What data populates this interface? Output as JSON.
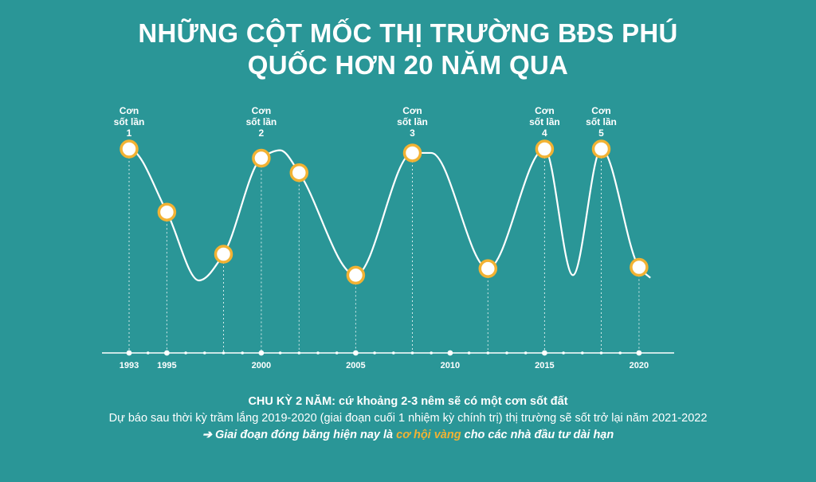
{
  "title": {
    "line1": "NHỮNG CỘT MỐC THỊ TRƯỜNG BĐS PHÚ",
    "line2": "QUỐC HƠN 20 NĂM QUA"
  },
  "peak_labels": [
    {
      "lines": [
        "Cơn",
        "sốt lần",
        "1"
      ],
      "year": 1993
    },
    {
      "lines": [
        "Cơn",
        "sốt lần",
        "2"
      ],
      "year": 2000
    },
    {
      "lines": [
        "Cơn",
        "sốt lần",
        "3"
      ],
      "year": 2008
    },
    {
      "lines": [
        "Cơn",
        "sốt lần",
        "4"
      ],
      "year": 2015
    },
    {
      "lines": [
        "Cơn",
        "sốt lần",
        "5"
      ],
      "year": 2018
    }
  ],
  "chart_data": {
    "type": "line",
    "x_axis_ticks": [
      1993,
      1995,
      2000,
      2005,
      2010,
      2015,
      2020
    ],
    "x_range": [
      1993,
      2020
    ],
    "y_range": [
      0,
      1
    ],
    "milestones": [
      {
        "year": 1993,
        "level": 1.0
      },
      {
        "year": 1995,
        "level": 0.52
      },
      {
        "year": 1998,
        "level": 0.2
      },
      {
        "year": 2000,
        "level": 0.93
      },
      {
        "year": 2002,
        "level": 0.82
      },
      {
        "year": 2005,
        "level": 0.04
      },
      {
        "year": 2008,
        "level": 0.97
      },
      {
        "year": 2012,
        "level": 0.09
      },
      {
        "year": 2015,
        "level": 1.0
      },
      {
        "year": 2018,
        "level": 1.0
      },
      {
        "year": 2020,
        "level": 0.1
      }
    ],
    "curve": [
      {
        "year": 1993,
        "level": 1.0
      },
      {
        "year": 1995,
        "level": 0.52
      },
      {
        "year": 1996.7,
        "level": 0.0
      },
      {
        "year": 1998,
        "level": 0.2
      },
      {
        "year": 2000,
        "level": 0.93
      },
      {
        "year": 2001,
        "level": 0.99
      },
      {
        "year": 2002,
        "level": 0.82
      },
      {
        "year": 2005,
        "level": 0.04
      },
      {
        "year": 2008,
        "level": 0.97
      },
      {
        "year": 2009,
        "level": 0.97
      },
      {
        "year": 2012,
        "level": 0.09
      },
      {
        "year": 2015,
        "level": 1.0
      },
      {
        "year": 2016.5,
        "level": 0.04
      },
      {
        "year": 2018,
        "level": 1.0
      },
      {
        "year": 2020,
        "level": 0.1
      },
      {
        "year": 2020.6,
        "level": 0.02
      }
    ]
  },
  "footer": {
    "headline": "CHU KỲ 2 NĂM: cứ khoảng 2-3 nêm sẽ có một cơn sốt đất",
    "forecast": "Dự báo sau thời kỳ trầm lắng 2019-2020 (giai đoạn cuối 1 nhiệm kỳ chính trị) thị trường sẽ sốt trở lại năm 2021-2022",
    "arrow": "➔",
    "note_pre": "Giai đoạn đóng băng hiện nay là",
    "note_hl": "cơ hội vàng",
    "note_post": "cho các nhà đầu tư dài hạn"
  },
  "colors": {
    "background": "#2a9697",
    "marker_ring": "#f2b233",
    "curve": "#ffffff",
    "highlight": "#f2b233"
  }
}
